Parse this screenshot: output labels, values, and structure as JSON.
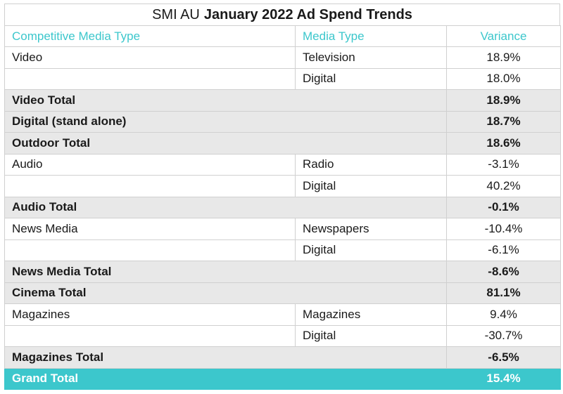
{
  "title": {
    "prefix": "SMI AU",
    "main": "January 2022 Ad Spend Trends"
  },
  "headers": {
    "col1": "Competitive Media Type",
    "col2": "Media Type",
    "col3": "Variance"
  },
  "rows": [
    {
      "type": "detail",
      "category": "Video",
      "media": "Television",
      "variance": "18.9%"
    },
    {
      "type": "detail",
      "category": "",
      "media": "Digital",
      "variance": "18.0%"
    },
    {
      "type": "total",
      "category": "Video Total",
      "media": "",
      "variance": "18.9%"
    },
    {
      "type": "total",
      "category": "Digital (stand alone)",
      "media": "",
      "variance": "18.7%"
    },
    {
      "type": "total",
      "category": "Outdoor Total",
      "media": "",
      "variance": "18.6%"
    },
    {
      "type": "detail",
      "category": "Audio",
      "media": "Radio",
      "variance": "-3.1%"
    },
    {
      "type": "detail",
      "category": "",
      "media": "Digital",
      "variance": "40.2%"
    },
    {
      "type": "total",
      "category": "Audio Total",
      "media": "",
      "variance": "-0.1%"
    },
    {
      "type": "detail",
      "category": "News Media",
      "media": "Newspapers",
      "variance": "-10.4%"
    },
    {
      "type": "detail",
      "category": "",
      "media": "Digital",
      "variance": "-6.1%"
    },
    {
      "type": "total",
      "category": "News Media Total",
      "media": "",
      "variance": "-8.6%"
    },
    {
      "type": "total",
      "category": "Cinema Total",
      "media": "",
      "variance": "81.1%"
    },
    {
      "type": "detail",
      "category": "Magazines",
      "media": "Magazines",
      "variance": "9.4%"
    },
    {
      "type": "detail",
      "category": "",
      "media": "Digital",
      "variance": "-30.7%"
    },
    {
      "type": "total",
      "category": "Magazines Total",
      "media": "",
      "variance": "-6.5%"
    },
    {
      "type": "grand",
      "category": "Grand Total",
      "media": "",
      "variance": "15.4%"
    }
  ],
  "colors": {
    "accent": "#3cc7cc",
    "total_row_bg": "#e8e8e8",
    "grid": "#d0d0d0"
  }
}
